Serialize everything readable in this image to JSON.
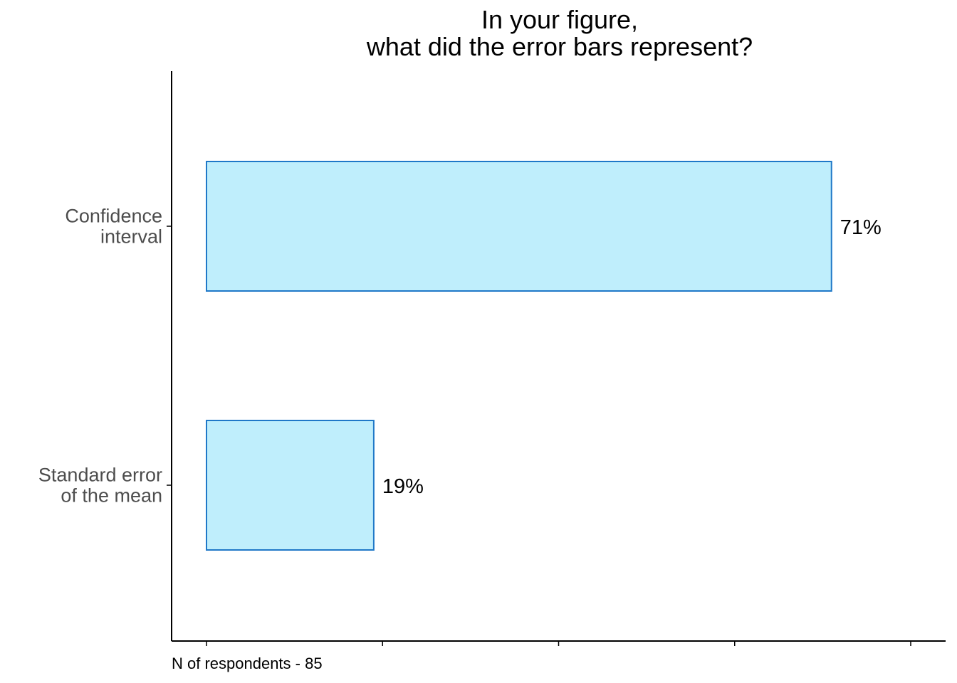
{
  "chart_data": {
    "type": "bar",
    "orientation": "horizontal",
    "title_lines": [
      "In your figure,",
      "what did the error bars represent?"
    ],
    "categories": [
      [
        "Confidence",
        "interval"
      ],
      [
        "Standard error",
        "of the mean"
      ]
    ],
    "values": [
      71,
      19
    ],
    "value_labels": [
      "71%",
      "19%"
    ],
    "xlim": [
      0,
      80
    ],
    "x_ticks": [
      0,
      20,
      40,
      60,
      80
    ],
    "x_tick_labels_shown": false,
    "caption": "N of respondents - 85",
    "grid": false,
    "legend": "none",
    "colors": {
      "bar_fill": "#bfeefc",
      "bar_stroke": "#1f78c8",
      "axis": "#000000",
      "category_text": "#4d4d4d"
    }
  }
}
